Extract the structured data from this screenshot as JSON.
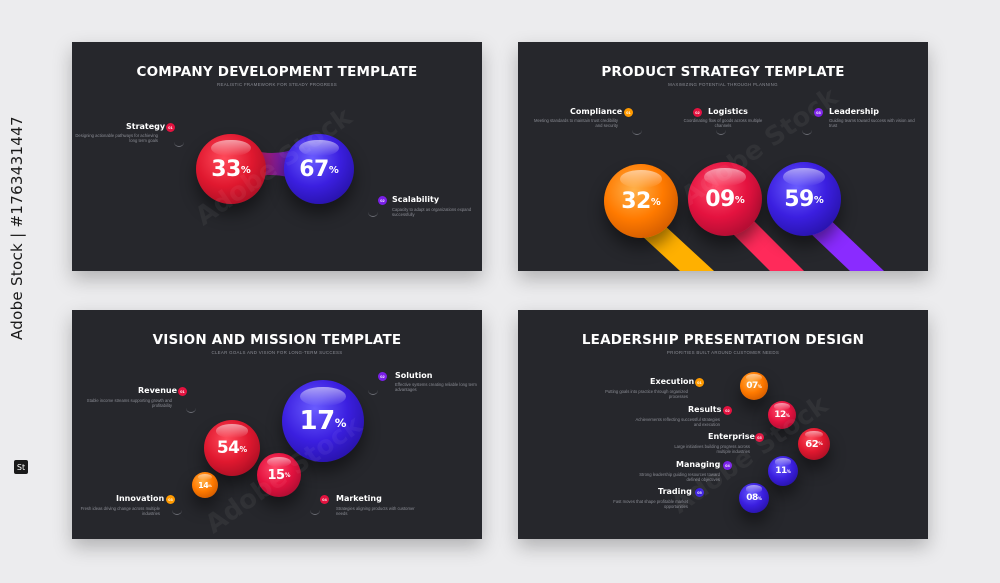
{
  "stock": {
    "id_text": "Adobe Stock | #1763431447",
    "watermark": "Adobe Stock"
  },
  "slides": [
    {
      "title": "COMPANY DEVELOPMENT TEMPLATE",
      "subtitle": "REALISTIC FRAMEWORK FOR STEADY PROGRESS",
      "values": [
        "33",
        "67"
      ],
      "percent": "%",
      "items": [
        {
          "label": "Strategy",
          "desc": "Designing actionable pathways for achieving long term goals",
          "num": "01"
        },
        {
          "label": "Scalability",
          "desc": "Capacity to adapt as organizations expand successfully",
          "num": "02"
        }
      ]
    },
    {
      "title": "PRODUCT STRATEGY TEMPLATE",
      "subtitle": "MAXIMIZING POTENTIAL THROUGH PLANNING",
      "values": [
        "32",
        "09",
        "59"
      ],
      "percent": "%",
      "items": [
        {
          "label": "Compliance",
          "desc": "Meeting standards to maintain trust credibility and security",
          "num": "01"
        },
        {
          "label": "Logistics",
          "desc": "Coordinating flow of goods across multiple channels",
          "num": "02"
        },
        {
          "label": "Leadership",
          "desc": "Guiding teams toward success with vision and trust",
          "num": "03"
        }
      ]
    },
    {
      "title": "VISION AND MISSION TEMPLATE",
      "subtitle": "CLEAR GOALS AND VISION FOR LONG-TERM SUCCESS",
      "values": [
        "17",
        "54",
        "15",
        "14"
      ],
      "percent": "%",
      "items": [
        {
          "label": "Revenue",
          "desc": "Stable income streams supporting growth and profitability",
          "num": "01"
        },
        {
          "label": "Solution",
          "desc": "Effective systems creating reliable long term advantages",
          "num": "02"
        },
        {
          "label": "Innovation",
          "desc": "Fresh ideas driving change across multiple industries",
          "num": "03"
        },
        {
          "label": "Marketing",
          "desc": "Strategies aligning products with customer needs",
          "num": "04"
        }
      ]
    },
    {
      "title": "LEADERSHIP PRESENTATION DESIGN",
      "subtitle": "PRIORITIES BUILT AROUND CUSTOMER NEEDS",
      "values": [
        "07",
        "12",
        "62",
        "11",
        "08"
      ],
      "percent": "%",
      "items": [
        {
          "label": "Execution",
          "desc": "Putting goals into practice through organized processes",
          "num": "01"
        },
        {
          "label": "Results",
          "desc": "Achievements reflecting successful strategies and execution",
          "num": "02"
        },
        {
          "label": "Enterprise",
          "desc": "Large initiatives building progress across multiple industries",
          "num": "03"
        },
        {
          "label": "Managing",
          "desc": "Strong leadership guiding resources toward defined objectives",
          "num": "04"
        },
        {
          "label": "Trading",
          "desc": "Fast moves that shape profitable market opportunities",
          "num": "05"
        }
      ]
    }
  ]
}
